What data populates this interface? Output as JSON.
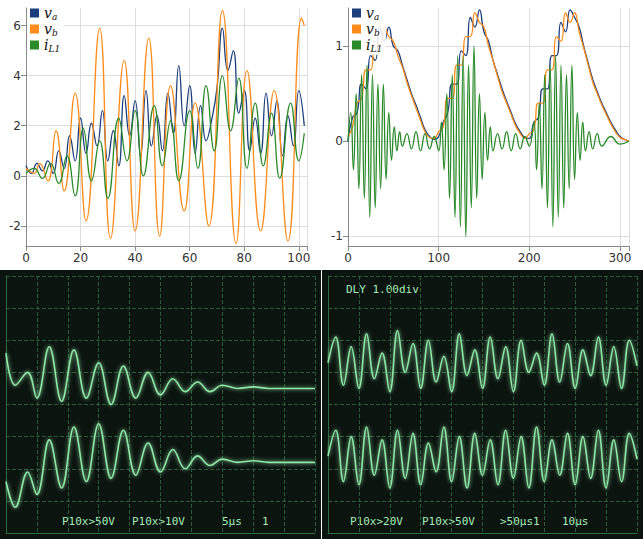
{
  "chart_data": [
    {
      "type": "line",
      "grid": true,
      "legend": "upper left",
      "xlim": [
        0,
        103
      ],
      "xticks": [
        0,
        20,
        40,
        60,
        80,
        100
      ],
      "ylim": [
        -2.8,
        6.7
      ],
      "yticks": [
        -2,
        0,
        2,
        4,
        6
      ],
      "series": [
        {
          "name": "va",
          "color": "#1c3f7c",
          "x": [
            0,
            2,
            4,
            6,
            8,
            10,
            12,
            14,
            16,
            18,
            20,
            22,
            24,
            26,
            28,
            30,
            32,
            34,
            36,
            38,
            40,
            42,
            44,
            46,
            48,
            50,
            52,
            54,
            56,
            58,
            60,
            62,
            64,
            66,
            68,
            70,
            72,
            74,
            76,
            78,
            80,
            82,
            84,
            86,
            88,
            90,
            92,
            94,
            96,
            98,
            100,
            102
          ],
          "values": [
            0.4,
            0.1,
            0.5,
            0.2,
            0.6,
            0.1,
            1.0,
            0.3,
            1.6,
            0.6,
            2.3,
            0.9,
            2.1,
            1.2,
            2.6,
            0.6,
            1.8,
            0.4,
            3.2,
            1.6,
            3.0,
            0.8,
            3.4,
            1.2,
            2.4,
            1.0,
            3.3,
            1.7,
            4.4,
            2.0,
            3.6,
            0.9,
            2.8,
            1.4,
            2.2,
            3.5,
            5.9,
            4.2,
            5.0,
            2.5,
            3.4,
            1.0,
            2.3,
            0.9,
            3.3,
            1.6,
            3.0,
            0.8,
            2.4,
            1.2,
            3.4,
            2.0
          ]
        },
        {
          "name": "vb",
          "color": "#ff8c1a",
          "x": [
            0,
            3,
            5,
            8,
            11,
            14,
            18,
            22,
            27,
            31,
            36,
            40,
            45,
            49,
            53,
            58,
            62,
            67,
            72,
            77,
            81,
            86,
            91,
            96,
            101,
            102
          ],
          "values": [
            0.3,
            0.1,
            0.5,
            -0.2,
            1.8,
            -0.6,
            3.3,
            -1.8,
            5.9,
            -2.5,
            4.6,
            -2.2,
            5.5,
            -2.4,
            3.6,
            -1.4,
            2.9,
            -2.0,
            6.6,
            -2.7,
            4.2,
            -2.2,
            3.4,
            -2.6,
            6.3,
            6.0
          ]
        },
        {
          "name": "iL1",
          "color": "#2a8a2a",
          "x": [
            0,
            3,
            6,
            9,
            12,
            15,
            18,
            21,
            24,
            27,
            30,
            34,
            37,
            40,
            43,
            47,
            50,
            53,
            56,
            60,
            63,
            66,
            69,
            72,
            75,
            78,
            81,
            84,
            87,
            90,
            93,
            97,
            100,
            102
          ],
          "values": [
            0.1,
            0.3,
            -0.1,
            0.5,
            -0.3,
            0.8,
            -0.8,
            1.9,
            -0.2,
            1.4,
            -0.9,
            2.3,
            0.6,
            2.6,
            0.0,
            2.8,
            0.4,
            2.2,
            -0.2,
            2.6,
            0.3,
            3.6,
            1.0,
            4.0,
            1.8,
            3.9,
            0.3,
            2.9,
            0.4,
            2.5,
            -0.1,
            2.9,
            0.6,
            1.7
          ]
        }
      ]
    },
    {
      "type": "line",
      "grid": true,
      "legend": "upper left",
      "xlim": [
        0,
        310
      ],
      "xticks": [
        0,
        100,
        200,
        300
      ],
      "ylim": [
        -1.1,
        1.4
      ],
      "yticks": [
        -1,
        0,
        1
      ],
      "series": [
        {
          "name": "va",
          "color": "#1c3f7c",
          "x": [
            0,
            5,
            10,
            15,
            20,
            25,
            30,
            35,
            40,
            45,
            50,
            55,
            60,
            65,
            70,
            75,
            80,
            85,
            90,
            95,
            100,
            105,
            110,
            115,
            120,
            125,
            130,
            135,
            140,
            145,
            150,
            155,
            160,
            165,
            170,
            175,
            180,
            185,
            190,
            195,
            200,
            205,
            210,
            215,
            220,
            225,
            230,
            235,
            240,
            245,
            250,
            255,
            260,
            265,
            270,
            275,
            280,
            285,
            290,
            295,
            300,
            305,
            310
          ],
          "values": [
            0,
            0.25,
            0.3,
            0.6,
            0.55,
            0.9,
            0.85,
            1.2,
            1.05,
            1.2,
            1.0,
            0.95,
            0.8,
            0.65,
            0.5,
            0.38,
            0.25,
            0.12,
            0.05,
            0.02,
            0.05,
            0.2,
            0.3,
            0.6,
            0.6,
            0.95,
            0.9,
            1.3,
            1.2,
            1.38,
            1.15,
            1.05,
            0.85,
            0.7,
            0.55,
            0.42,
            0.3,
            0.18,
            0.1,
            0.04,
            0.03,
            0.2,
            0.25,
            0.55,
            0.55,
            0.9,
            0.9,
            1.25,
            1.15,
            1.38,
            1.3,
            1.2,
            1.0,
            0.82,
            0.65,
            0.52,
            0.4,
            0.3,
            0.2,
            0.12,
            0.05,
            0.02,
            0.0
          ]
        },
        {
          "name": "vb",
          "color": "#ff8c1a",
          "x": [
            0,
            5,
            10,
            15,
            20,
            25,
            30,
            35,
            40,
            45,
            50,
            55,
            60,
            65,
            70,
            75,
            80,
            85,
            90,
            95,
            100,
            105,
            110,
            115,
            120,
            125,
            130,
            135,
            140,
            145,
            150,
            155,
            160,
            165,
            170,
            175,
            180,
            185,
            190,
            195,
            200,
            205,
            210,
            215,
            220,
            225,
            230,
            235,
            240,
            245,
            250,
            255,
            260,
            265,
            270,
            275,
            280,
            285,
            290,
            295,
            300,
            305,
            310
          ],
          "values": [
            0.05,
            0.15,
            0.4,
            0.45,
            0.75,
            0.75,
            1.05,
            1.0,
            1.2,
            1.1,
            1.05,
            0.9,
            0.78,
            0.62,
            0.48,
            0.35,
            0.22,
            0.1,
            0.04,
            0.03,
            0.1,
            0.15,
            0.45,
            0.45,
            0.8,
            0.8,
            1.1,
            1.1,
            1.35,
            1.25,
            1.2,
            1.0,
            0.85,
            0.68,
            0.52,
            0.4,
            0.28,
            0.16,
            0.08,
            0.03,
            0.08,
            0.12,
            0.4,
            0.4,
            0.75,
            0.75,
            1.1,
            1.05,
            1.35,
            1.25,
            1.35,
            1.15,
            0.98,
            0.8,
            0.62,
            0.5,
            0.38,
            0.28,
            0.18,
            0.1,
            0.04,
            0.02,
            0.0
          ]
        },
        {
          "name": "iL1",
          "color": "#2a8a2a",
          "x": [
            0,
            3,
            6,
            9,
            12,
            15,
            18,
            21,
            24,
            27,
            30,
            33,
            36,
            39,
            42,
            45,
            48,
            51,
            54,
            57,
            60,
            65,
            70,
            75,
            80,
            85,
            90,
            95,
            100,
            103,
            106,
            109,
            112,
            115,
            118,
            121,
            124,
            127,
            130,
            133,
            136,
            139,
            142,
            145,
            148,
            151,
            154,
            157,
            160,
            165,
            170,
            175,
            180,
            185,
            190,
            195,
            200,
            205,
            208,
            211,
            214,
            217,
            220,
            223,
            226,
            229,
            232,
            235,
            238,
            241,
            244,
            247,
            250,
            253,
            256,
            259,
            262,
            266,
            270,
            275,
            280,
            290,
            300,
            310
          ],
          "values": [
            0.0,
            0.3,
            -0.3,
            0.5,
            -0.5,
            0.7,
            -0.6,
            0.8,
            -0.8,
            0.7,
            -0.7,
            0.6,
            -0.5,
            0.6,
            -0.4,
            0.3,
            -0.2,
            0.15,
            -0.1,
            0.1,
            -0.05,
            0.08,
            -0.08,
            0.1,
            -0.1,
            0.08,
            -0.08,
            0.05,
            -0.1,
            0.2,
            -0.3,
            0.5,
            -0.6,
            0.7,
            -0.8,
            0.9,
            -0.9,
            0.9,
            -1.0,
            0.8,
            -0.7,
            1.0,
            -0.6,
            0.5,
            -0.4,
            0.3,
            -0.2,
            0.15,
            -0.1,
            0.08,
            -0.08,
            0.1,
            -0.1,
            0.08,
            -0.08,
            0.05,
            -0.05,
            0.2,
            -0.3,
            0.4,
            -0.5,
            0.7,
            -0.7,
            0.8,
            -0.9,
            0.9,
            -0.8,
            0.8,
            -0.7,
            0.7,
            -0.5,
            0.8,
            -0.4,
            0.3,
            -0.2,
            0.2,
            -0.1,
            0.1,
            -0.08,
            0.08,
            -0.05,
            0.05,
            -0.03,
            0.0
          ]
        }
      ]
    },
    {
      "type": "line",
      "grid": true,
      "tick_labels": false,
      "xlim": [
        0,
        10
      ],
      "xticks": [
        0,
        1,
        2,
        3,
        4,
        5,
        6,
        7,
        8,
        9,
        10
      ],
      "ylim": [
        0,
        8
      ],
      "yticks": [
        0,
        1,
        2,
        3,
        4,
        5,
        6,
        7,
        8
      ],
      "annotations": [
        "P10x>50V",
        "P10x>10V",
        "5μs",
        "1"
      ],
      "series": [
        {
          "color": "#8fe6a6",
          "x": [
            0,
            0.3,
            0.7,
            1.0,
            1.4,
            1.8,
            2.2,
            2.6,
            3.0,
            3.4,
            3.8,
            4.2,
            4.6,
            5.0,
            5.4,
            5.8,
            6.2,
            6.6,
            7.0,
            7.5,
            8,
            8.5,
            9,
            9.5,
            10
          ],
          "values": [
            5.6,
            4.6,
            5.0,
            4.2,
            5.8,
            4.1,
            5.7,
            4.2,
            5.3,
            4.0,
            5.2,
            4.2,
            5.0,
            4.3,
            4.8,
            4.4,
            4.7,
            4.4,
            4.6,
            4.5,
            4.55,
            4.5,
            4.5,
            4.5,
            4.5
          ]
        },
        {
          "color": "#8fe6a6",
          "x": [
            0,
            0.3,
            0.7,
            1.0,
            1.4,
            1.8,
            2.2,
            2.6,
            3.0,
            3.4,
            3.8,
            4.2,
            4.6,
            5.0,
            5.4,
            5.8,
            6.2,
            6.6,
            7.0,
            7.5,
            8,
            8.5,
            9,
            9.5,
            10
          ],
          "values": [
            1.6,
            0.8,
            1.9,
            1.2,
            2.9,
            1.4,
            3.3,
            1.6,
            3.4,
            1.7,
            3.2,
            1.8,
            2.8,
            1.9,
            2.6,
            2.0,
            2.4,
            2.1,
            2.3,
            2.2,
            2.25,
            2.2,
            2.2,
            2.2,
            2.2
          ]
        }
      ]
    },
    {
      "type": "line",
      "grid": true,
      "tick_labels": false,
      "xlim": [
        0,
        10
      ],
      "xticks": [
        0,
        1,
        2,
        3,
        4,
        5,
        6,
        7,
        8,
        9,
        10
      ],
      "ylim": [
        0,
        8
      ],
      "yticks": [
        0,
        1,
        2,
        3,
        4,
        5,
        6,
        7,
        8
      ],
      "annotations": [
        "DLY 1.00div",
        "P10x>20V",
        "P10x>50V",
        ">50μs1",
        "10μs"
      ],
      "series": [
        {
          "color": "#8fe6a6",
          "x": [
            0,
            0.25,
            0.5,
            0.75,
            1,
            1.25,
            1.5,
            1.75,
            2,
            2.25,
            2.5,
            2.75,
            3,
            3.25,
            3.5,
            3.75,
            4,
            4.25,
            4.5,
            4.75,
            5,
            5.25,
            5.5,
            5.75,
            6,
            6.25,
            6.5,
            6.75,
            7,
            7.25,
            7.5,
            7.75,
            8,
            8.25,
            8.5,
            8.75,
            9,
            9.25,
            9.5,
            9.75,
            10
          ],
          "values": [
            5.3,
            6.1,
            4.6,
            5.8,
            4.5,
            6.2,
            4.8,
            5.6,
            4.4,
            6.3,
            5.0,
            5.9,
            4.5,
            6.0,
            4.7,
            5.5,
            4.4,
            6.2,
            4.9,
            5.7,
            4.5,
            6.1,
            4.8,
            5.8,
            4.4,
            6.0,
            5.0,
            5.6,
            4.6,
            6.2,
            4.7,
            5.9,
            4.5,
            5.7,
            4.9,
            6.1,
            4.6,
            5.8,
            4.5,
            6.0,
            5.2
          ]
        },
        {
          "color": "#8fe6a6",
          "x": [
            0,
            0.25,
            0.5,
            0.75,
            1,
            1.25,
            1.5,
            1.75,
            2,
            2.25,
            2.5,
            2.75,
            3,
            3.25,
            3.5,
            3.75,
            4,
            4.25,
            4.5,
            4.75,
            5,
            5.25,
            5.5,
            5.75,
            6,
            6.25,
            6.5,
            6.75,
            7,
            7.25,
            7.5,
            7.75,
            8,
            8.25,
            8.5,
            8.75,
            9,
            9.25,
            9.5,
            9.75,
            10
          ],
          "values": [
            2.4,
            3.2,
            1.6,
            3.0,
            1.5,
            3.3,
            1.8,
            2.9,
            1.4,
            3.2,
            1.7,
            3.1,
            1.5,
            2.8,
            1.9,
            3.3,
            1.6,
            3.0,
            1.4,
            3.1,
            1.8,
            2.9,
            1.5,
            3.2,
            1.7,
            3.0,
            1.4,
            3.3,
            1.6,
            2.9,
            1.8,
            3.1,
            1.5,
            3.0,
            1.7,
            3.2,
            1.4,
            2.9,
            1.6,
            3.1,
            2.3
          ]
        }
      ]
    }
  ]
}
